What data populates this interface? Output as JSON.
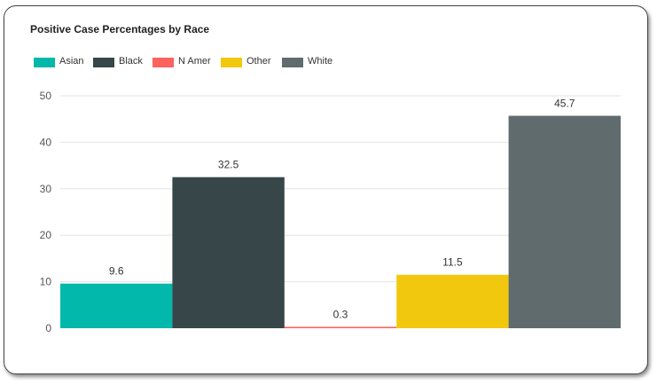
{
  "chart_data": {
    "type": "bar",
    "title": "Positive Case Percentages by Race",
    "xlabel": "",
    "ylabel": "",
    "ylim": [
      0,
      50
    ],
    "yticks": [
      "0",
      "10",
      "20",
      "30",
      "40",
      "50"
    ],
    "grid": true,
    "legend_position": "top-left",
    "categories": [
      "Asian",
      "Black",
      "N Amer",
      "Other",
      "White"
    ],
    "values": [
      9.6,
      32.5,
      0.3,
      11.5,
      45.7
    ],
    "data_labels": [
      "9.6",
      "32.5",
      "0.3",
      "11.5",
      "45.7"
    ],
    "colors": [
      "#01b8aa",
      "#374649",
      "#fd625e",
      "#f2c80f",
      "#5f6b6d"
    ]
  }
}
